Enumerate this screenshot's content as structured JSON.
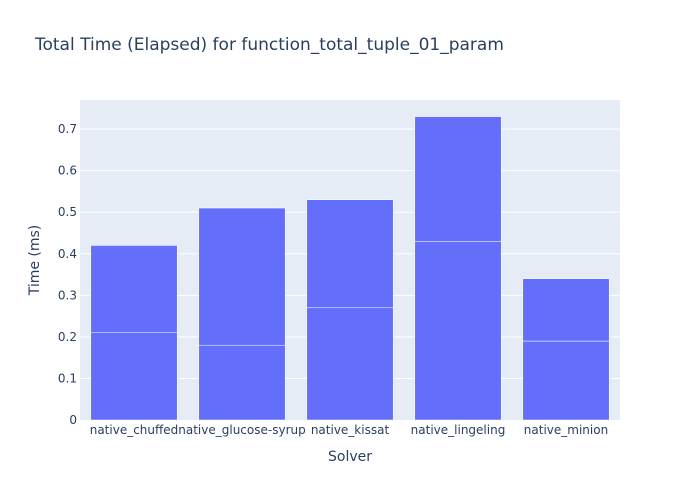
{
  "chart_data": {
    "type": "bar",
    "barmode": "stack",
    "title": "Total Time (Elapsed) for function_total_tuple_01_param",
    "xlabel": "Solver",
    "ylabel": "Time (ms)",
    "categories": [
      "native_chuffed",
      "native_glucose-syrup",
      "native_kissat",
      "native_lingeling",
      "native_minion"
    ],
    "series": [
      {
        "values": [
          0.21,
          0.18,
          0.27,
          0.43,
          0.19
        ]
      },
      {
        "values": [
          0.21,
          0.33,
          0.26,
          0.3,
          0.15
        ]
      }
    ],
    "ylim": [
      0,
      0.77
    ],
    "yticks": [
      0,
      0.1,
      0.2,
      0.3,
      0.4,
      0.5,
      0.6,
      0.7
    ],
    "ytick_labels": [
      "0",
      "0.1",
      "0.2",
      "0.3",
      "0.4",
      "0.5",
      "0.6",
      "0.7"
    ],
    "grid": true,
    "colors": {
      "bar": "#636efa",
      "bar_outline": "#ffffff",
      "plot_bg": "#e5ecf6",
      "grid": "#ffffff",
      "text": "#2a3f5f"
    }
  }
}
